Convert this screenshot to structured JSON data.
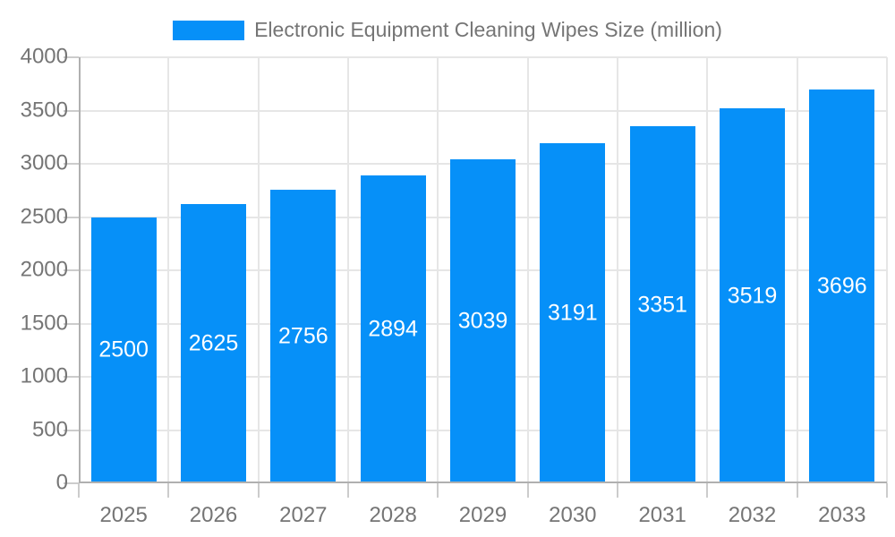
{
  "chart_data": {
    "type": "bar",
    "title": "Electronic Equipment Cleaning Wipes Size (million)",
    "categories": [
      "2025",
      "2026",
      "2027",
      "2028",
      "2029",
      "2030",
      "2031",
      "2032",
      "2033"
    ],
    "values": [
      2500,
      2625,
      2756,
      2894,
      3039,
      3191,
      3351,
      3519,
      3696
    ],
    "xlabel": "",
    "ylabel": "",
    "ylim": [
      0,
      4000
    ],
    "yticks": [
      0,
      500,
      1000,
      1500,
      2000,
      2500,
      3000,
      3500,
      4000
    ],
    "grid": true,
    "legend_position": "top-center",
    "value_labels": "inside-center",
    "colors": {
      "background": "#ffffff",
      "bar": "#0690f8",
      "value_label": "#ffffff",
      "axis_text": "#757575",
      "gridline": "#e6e6e6",
      "axis_line": "#b0b0b0",
      "tick": "#cccccc"
    }
  }
}
